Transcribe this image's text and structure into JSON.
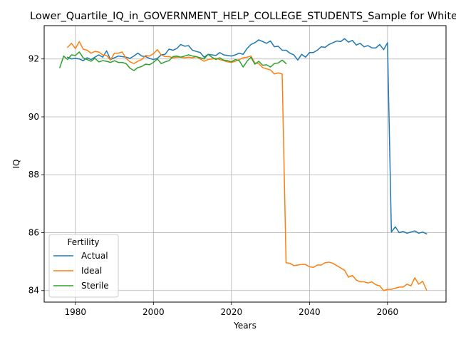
{
  "chart_data": {
    "type": "line",
    "title": "Lower_Quartile_IQ_in_GOVERNMENT_HELP_COLLEGE_STUDENTS_Sample for White",
    "xlabel": "Years",
    "ylabel": "IQ",
    "xlim": [
      1972,
      2075
    ],
    "ylim": [
      83.6,
      93.15
    ],
    "xticks": [
      1980,
      2000,
      2020,
      2040,
      2060
    ],
    "yticks": [
      84,
      86,
      88,
      90,
      92
    ],
    "grid": true,
    "legend": {
      "title": "Fertility",
      "placement": "lower-left"
    },
    "series": [
      {
        "name": "Actual",
        "color": "#1f77b4",
        "points": [
          [
            1978,
            92.06
          ],
          [
            1979,
            92.0
          ],
          [
            1980,
            92.02
          ],
          [
            1981,
            92.0
          ],
          [
            1982,
            91.94
          ],
          [
            1983,
            92.04
          ],
          [
            1984,
            91.98
          ],
          [
            1985,
            92.06
          ],
          [
            1986,
            92.14
          ],
          [
            1987,
            92.06
          ],
          [
            1988,
            92.28
          ],
          [
            1989,
            91.98
          ],
          [
            1990,
            92.04
          ],
          [
            1991,
            92.1
          ],
          [
            1992,
            92.08
          ],
          [
            1993,
            92.06
          ],
          [
            1994,
            92.02
          ],
          [
            1995,
            92.1
          ],
          [
            1996,
            92.2
          ],
          [
            1997,
            92.1
          ],
          [
            1998,
            92.08
          ],
          [
            1999,
            92.02
          ],
          [
            2000,
            91.98
          ],
          [
            2001,
            92.02
          ],
          [
            2002,
            92.14
          ],
          [
            2003,
            92.16
          ],
          [
            2004,
            92.34
          ],
          [
            2005,
            92.3
          ],
          [
            2006,
            92.36
          ],
          [
            2007,
            92.5
          ],
          [
            2008,
            92.44
          ],
          [
            2009,
            92.46
          ],
          [
            2010,
            92.3
          ],
          [
            2011,
            92.26
          ],
          [
            2012,
            92.22
          ],
          [
            2013,
            92.06
          ],
          [
            2014,
            92.16
          ],
          [
            2015,
            92.14
          ],
          [
            2016,
            92.12
          ],
          [
            2017,
            92.22
          ],
          [
            2018,
            92.14
          ],
          [
            2019,
            92.12
          ],
          [
            2020,
            92.1
          ],
          [
            2021,
            92.14
          ],
          [
            2022,
            92.2
          ],
          [
            2023,
            92.16
          ],
          [
            2024,
            92.36
          ],
          [
            2025,
            92.5
          ],
          [
            2026,
            92.56
          ],
          [
            2027,
            92.66
          ],
          [
            2028,
            92.6
          ],
          [
            2029,
            92.54
          ],
          [
            2030,
            92.62
          ],
          [
            2031,
            92.42
          ],
          [
            2032,
            92.44
          ],
          [
            2033,
            92.3
          ],
          [
            2034,
            92.3
          ],
          [
            2035,
            92.2
          ],
          [
            2036,
            92.14
          ],
          [
            2037,
            91.96
          ],
          [
            2038,
            92.16
          ],
          [
            2039,
            92.06
          ],
          [
            2040,
            92.22
          ],
          [
            2041,
            92.22
          ],
          [
            2042,
            92.3
          ],
          [
            2043,
            92.42
          ],
          [
            2044,
            92.4
          ],
          [
            2045,
            92.5
          ],
          [
            2046,
            92.56
          ],
          [
            2047,
            92.62
          ],
          [
            2048,
            92.6
          ],
          [
            2049,
            92.7
          ],
          [
            2050,
            92.58
          ],
          [
            2051,
            92.64
          ],
          [
            2052,
            92.48
          ],
          [
            2053,
            92.54
          ],
          [
            2054,
            92.42
          ],
          [
            2055,
            92.46
          ],
          [
            2056,
            92.38
          ],
          [
            2057,
            92.38
          ],
          [
            2058,
            92.5
          ],
          [
            2059,
            92.32
          ],
          [
            2060,
            92.56
          ],
          [
            2061,
            86.02
          ],
          [
            2062,
            86.2
          ],
          [
            2063,
            86.0
          ],
          [
            2064,
            86.04
          ],
          [
            2065,
            85.98
          ],
          [
            2066,
            86.02
          ],
          [
            2067,
            86.06
          ],
          [
            2068,
            85.98
          ],
          [
            2069,
            86.02
          ],
          [
            2070,
            85.96
          ]
        ]
      },
      {
        "name": "Ideal",
        "color": "#ff7f0e",
        "points": [
          [
            1978,
            92.4
          ],
          [
            1979,
            92.54
          ],
          [
            1980,
            92.36
          ],
          [
            1981,
            92.6
          ],
          [
            1982,
            92.34
          ],
          [
            1983,
            92.3
          ],
          [
            1984,
            92.2
          ],
          [
            1985,
            92.26
          ],
          [
            1986,
            92.24
          ],
          [
            1987,
            92.14
          ],
          [
            1988,
            92.12
          ],
          [
            1989,
            91.96
          ],
          [
            1990,
            92.2
          ],
          [
            1991,
            92.2
          ],
          [
            1992,
            92.24
          ],
          [
            1993,
            92.02
          ],
          [
            1994,
            91.9
          ],
          [
            1995,
            91.84
          ],
          [
            1996,
            91.92
          ],
          [
            1997,
            91.98
          ],
          [
            1998,
            92.12
          ],
          [
            1999,
            92.1
          ],
          [
            2000,
            92.18
          ],
          [
            2001,
            92.32
          ],
          [
            2002,
            92.14
          ],
          [
            2003,
            92.08
          ],
          [
            2004,
            92.08
          ],
          [
            2005,
            92.04
          ],
          [
            2006,
            92.06
          ],
          [
            2007,
            92.06
          ],
          [
            2008,
            92.04
          ],
          [
            2009,
            92.06
          ],
          [
            2010,
            92.04
          ],
          [
            2011,
            92.08
          ],
          [
            2012,
            92.0
          ],
          [
            2013,
            91.92
          ],
          [
            2014,
            91.98
          ],
          [
            2015,
            92.0
          ],
          [
            2016,
            92.02
          ],
          [
            2017,
            91.98
          ],
          [
            2018,
            91.94
          ],
          [
            2019,
            91.9
          ],
          [
            2020,
            91.88
          ],
          [
            2021,
            91.92
          ],
          [
            2022,
            91.98
          ],
          [
            2023,
            92.04
          ],
          [
            2024,
            92.06
          ],
          [
            2025,
            92.1
          ],
          [
            2026,
            91.86
          ],
          [
            2027,
            91.84
          ],
          [
            2028,
            91.7
          ],
          [
            2029,
            91.66
          ],
          [
            2030,
            91.62
          ],
          [
            2031,
            91.48
          ],
          [
            2032,
            91.52
          ],
          [
            2033,
            91.48
          ],
          [
            2034,
            84.96
          ],
          [
            2035,
            84.94
          ],
          [
            2036,
            84.86
          ],
          [
            2037,
            84.88
          ],
          [
            2038,
            84.9
          ],
          [
            2039,
            84.9
          ],
          [
            2040,
            84.82
          ],
          [
            2041,
            84.8
          ],
          [
            2042,
            84.88
          ],
          [
            2043,
            84.88
          ],
          [
            2044,
            84.96
          ],
          [
            2045,
            84.98
          ],
          [
            2046,
            84.94
          ],
          [
            2047,
            84.86
          ],
          [
            2048,
            84.78
          ],
          [
            2049,
            84.7
          ],
          [
            2050,
            84.46
          ],
          [
            2051,
            84.52
          ],
          [
            2052,
            84.36
          ],
          [
            2053,
            84.3
          ],
          [
            2054,
            84.3
          ],
          [
            2055,
            84.26
          ],
          [
            2056,
            84.3
          ],
          [
            2057,
            84.2
          ],
          [
            2058,
            84.16
          ],
          [
            2059,
            84.0
          ],
          [
            2060,
            84.04
          ],
          [
            2061,
            84.04
          ],
          [
            2062,
            84.08
          ],
          [
            2063,
            84.12
          ],
          [
            2064,
            84.12
          ],
          [
            2065,
            84.22
          ],
          [
            2066,
            84.16
          ],
          [
            2067,
            84.44
          ],
          [
            2068,
            84.22
          ],
          [
            2069,
            84.32
          ],
          [
            2070,
            84.02
          ]
        ]
      },
      {
        "name": "Sterile",
        "color": "#2ca02c",
        "points": [
          [
            1976,
            91.7
          ],
          [
            1977,
            92.1
          ],
          [
            1978,
            91.98
          ],
          [
            1979,
            92.14
          ],
          [
            1980,
            92.12
          ],
          [
            1981,
            92.24
          ],
          [
            1982,
            92.04
          ],
          [
            1983,
            91.98
          ],
          [
            1984,
            91.92
          ],
          [
            1985,
            92.02
          ],
          [
            1986,
            91.9
          ],
          [
            1987,
            91.94
          ],
          [
            1988,
            91.92
          ],
          [
            1989,
            91.88
          ],
          [
            1990,
            91.94
          ],
          [
            1991,
            91.88
          ],
          [
            1992,
            91.88
          ],
          [
            1993,
            91.84
          ],
          [
            1994,
            91.68
          ],
          [
            1995,
            91.6
          ],
          [
            1996,
            91.7
          ],
          [
            1997,
            91.74
          ],
          [
            1998,
            91.82
          ],
          [
            1999,
            91.8
          ],
          [
            2000,
            91.88
          ],
          [
            2001,
            92.0
          ],
          [
            2002,
            91.84
          ],
          [
            2003,
            91.9
          ],
          [
            2004,
            91.94
          ],
          [
            2005,
            92.08
          ],
          [
            2006,
            92.1
          ],
          [
            2007,
            92.06
          ],
          [
            2008,
            92.1
          ],
          [
            2009,
            92.14
          ],
          [
            2010,
            92.1
          ],
          [
            2011,
            92.08
          ],
          [
            2012,
            92.04
          ],
          [
            2013,
            92.0
          ],
          [
            2014,
            92.16
          ],
          [
            2015,
            92.06
          ],
          [
            2016,
            91.98
          ],
          [
            2017,
            92.04
          ],
          [
            2018,
            91.96
          ],
          [
            2019,
            91.94
          ],
          [
            2020,
            91.9
          ],
          [
            2021,
            91.98
          ],
          [
            2022,
            91.94
          ],
          [
            2023,
            91.72
          ],
          [
            2024,
            91.92
          ],
          [
            2025,
            92.06
          ],
          [
            2026,
            91.82
          ],
          [
            2027,
            91.92
          ],
          [
            2028,
            91.78
          ],
          [
            2029,
            91.8
          ],
          [
            2030,
            91.72
          ],
          [
            2031,
            91.84
          ],
          [
            2032,
            91.86
          ],
          [
            2033,
            91.96
          ],
          [
            2034,
            91.84
          ]
        ]
      }
    ]
  }
}
